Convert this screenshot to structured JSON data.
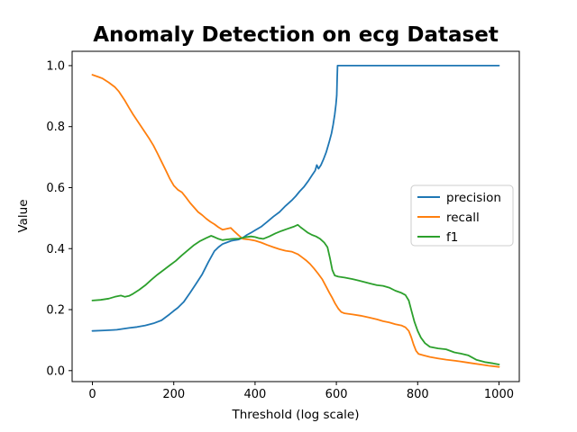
{
  "chart_data": {
    "type": "line",
    "title": "Anomaly Detection on ecg Dataset",
    "xlabel": "Threshold (log scale)",
    "ylabel": "Value",
    "grid": false,
    "legend_position": "center right",
    "background_color": "#ffffff",
    "spine_color": "#000000",
    "xlim": [
      -50,
      1050
    ],
    "ylim": [
      -0.036,
      1.047
    ],
    "xticks": [
      {
        "v": 0,
        "label": "0"
      },
      {
        "v": 200,
        "label": "200"
      },
      {
        "v": 400,
        "label": "400"
      },
      {
        "v": 600,
        "label": "600"
      },
      {
        "v": 800,
        "label": "800"
      },
      {
        "v": 1000,
        "label": "1000"
      }
    ],
    "yticks": [
      {
        "v": 0.0,
        "label": "0.0"
      },
      {
        "v": 0.2,
        "label": "0.2"
      },
      {
        "v": 0.4,
        "label": "0.4"
      },
      {
        "v": 0.6,
        "label": "0.6"
      },
      {
        "v": 0.8,
        "label": "0.8"
      },
      {
        "v": 1.0,
        "label": "1.0"
      }
    ],
    "series": [
      {
        "name": "precision",
        "color": "#1f77b4",
        "points": [
          [
            0,
            0.13
          ],
          [
            30,
            0.132
          ],
          [
            60,
            0.134
          ],
          [
            90,
            0.14
          ],
          [
            110,
            0.143
          ],
          [
            130,
            0.148
          ],
          [
            150,
            0.155
          ],
          [
            170,
            0.165
          ],
          [
            190,
            0.185
          ],
          [
            200,
            0.196
          ],
          [
            210,
            0.206
          ],
          [
            225,
            0.226
          ],
          [
            240,
            0.255
          ],
          [
            255,
            0.285
          ],
          [
            270,
            0.316
          ],
          [
            285,
            0.356
          ],
          [
            300,
            0.392
          ],
          [
            310,
            0.405
          ],
          [
            320,
            0.415
          ],
          [
            330,
            0.42
          ],
          [
            340,
            0.425
          ],
          [
            350,
            0.428
          ],
          [
            360,
            0.43
          ],
          [
            370,
            0.436
          ],
          [
            380,
            0.445
          ],
          [
            390,
            0.452
          ],
          [
            400,
            0.46
          ],
          [
            415,
            0.472
          ],
          [
            430,
            0.488
          ],
          [
            445,
            0.505
          ],
          [
            460,
            0.52
          ],
          [
            475,
            0.54
          ],
          [
            490,
            0.558
          ],
          [
            500,
            0.572
          ],
          [
            510,
            0.588
          ],
          [
            520,
            0.602
          ],
          [
            530,
            0.62
          ],
          [
            540,
            0.64
          ],
          [
            548,
            0.656
          ],
          [
            552,
            0.674
          ],
          [
            556,
            0.662
          ],
          [
            562,
            0.674
          ],
          [
            568,
            0.692
          ],
          [
            575,
            0.716
          ],
          [
            582,
            0.748
          ],
          [
            588,
            0.778
          ],
          [
            592,
            0.806
          ],
          [
            596,
            0.84
          ],
          [
            599,
            0.872
          ],
          [
            601,
            0.902
          ],
          [
            602,
            0.96
          ],
          [
            603,
            1.0
          ],
          [
            1000,
            1.0
          ]
        ]
      },
      {
        "name": "recall",
        "color": "#ff7f0e",
        "points": [
          [
            0,
            0.97
          ],
          [
            15,
            0.963
          ],
          [
            25,
            0.958
          ],
          [
            40,
            0.945
          ],
          [
            55,
            0.93
          ],
          [
            65,
            0.915
          ],
          [
            80,
            0.885
          ],
          [
            90,
            0.862
          ],
          [
            100,
            0.84
          ],
          [
            110,
            0.82
          ],
          [
            120,
            0.8
          ],
          [
            130,
            0.78
          ],
          [
            140,
            0.76
          ],
          [
            150,
            0.738
          ],
          [
            160,
            0.712
          ],
          [
            170,
            0.685
          ],
          [
            180,
            0.658
          ],
          [
            190,
            0.63
          ],
          [
            200,
            0.607
          ],
          [
            210,
            0.593
          ],
          [
            220,
            0.585
          ],
          [
            230,
            0.568
          ],
          [
            240,
            0.55
          ],
          [
            250,
            0.535
          ],
          [
            260,
            0.52
          ],
          [
            270,
            0.51
          ],
          [
            280,
            0.498
          ],
          [
            290,
            0.488
          ],
          [
            300,
            0.48
          ],
          [
            310,
            0.47
          ],
          [
            320,
            0.462
          ],
          [
            330,
            0.465
          ],
          [
            340,
            0.468
          ],
          [
            350,
            0.455
          ],
          [
            360,
            0.443
          ],
          [
            370,
            0.432
          ],
          [
            385,
            0.43
          ],
          [
            400,
            0.426
          ],
          [
            415,
            0.42
          ],
          [
            430,
            0.412
          ],
          [
            445,
            0.405
          ],
          [
            460,
            0.398
          ],
          [
            475,
            0.393
          ],
          [
            490,
            0.39
          ],
          [
            505,
            0.382
          ],
          [
            515,
            0.372
          ],
          [
            525,
            0.362
          ],
          [
            535,
            0.35
          ],
          [
            545,
            0.335
          ],
          [
            555,
            0.318
          ],
          [
            565,
            0.3
          ],
          [
            575,
            0.275
          ],
          [
            583,
            0.255
          ],
          [
            590,
            0.238
          ],
          [
            597,
            0.22
          ],
          [
            605,
            0.203
          ],
          [
            612,
            0.192
          ],
          [
            620,
            0.188
          ],
          [
            640,
            0.184
          ],
          [
            660,
            0.18
          ],
          [
            680,
            0.174
          ],
          [
            700,
            0.168
          ],
          [
            715,
            0.162
          ],
          [
            730,
            0.158
          ],
          [
            745,
            0.152
          ],
          [
            760,
            0.148
          ],
          [
            770,
            0.142
          ],
          [
            778,
            0.13
          ],
          [
            784,
            0.11
          ],
          [
            790,
            0.085
          ],
          [
            796,
            0.065
          ],
          [
            802,
            0.055
          ],
          [
            815,
            0.05
          ],
          [
            830,
            0.045
          ],
          [
            850,
            0.04
          ],
          [
            870,
            0.036
          ],
          [
            895,
            0.032
          ],
          [
            915,
            0.028
          ],
          [
            935,
            0.024
          ],
          [
            955,
            0.02
          ],
          [
            975,
            0.016
          ],
          [
            1000,
            0.012
          ]
        ]
      },
      {
        "name": "f1",
        "color": "#2ca02c",
        "points": [
          [
            0,
            0.23
          ],
          [
            20,
            0.232
          ],
          [
            40,
            0.236
          ],
          [
            55,
            0.242
          ],
          [
            70,
            0.246
          ],
          [
            80,
            0.242
          ],
          [
            90,
            0.245
          ],
          [
            100,
            0.252
          ],
          [
            115,
            0.265
          ],
          [
            130,
            0.28
          ],
          [
            145,
            0.298
          ],
          [
            160,
            0.315
          ],
          [
            175,
            0.33
          ],
          [
            190,
            0.345
          ],
          [
            205,
            0.36
          ],
          [
            220,
            0.378
          ],
          [
            235,
            0.395
          ],
          [
            250,
            0.412
          ],
          [
            265,
            0.425
          ],
          [
            280,
            0.435
          ],
          [
            292,
            0.442
          ],
          [
            300,
            0.438
          ],
          [
            310,
            0.432
          ],
          [
            320,
            0.428
          ],
          [
            330,
            0.43
          ],
          [
            345,
            0.432
          ],
          [
            360,
            0.433
          ],
          [
            375,
            0.437
          ],
          [
            390,
            0.44
          ],
          [
            400,
            0.438
          ],
          [
            410,
            0.434
          ],
          [
            420,
            0.432
          ],
          [
            435,
            0.44
          ],
          [
            450,
            0.45
          ],
          [
            465,
            0.458
          ],
          [
            480,
            0.465
          ],
          [
            495,
            0.472
          ],
          [
            505,
            0.478
          ],
          [
            512,
            0.47
          ],
          [
            520,
            0.462
          ],
          [
            530,
            0.452
          ],
          [
            540,
            0.445
          ],
          [
            550,
            0.44
          ],
          [
            560,
            0.432
          ],
          [
            570,
            0.42
          ],
          [
            578,
            0.405
          ],
          [
            584,
            0.37
          ],
          [
            590,
            0.33
          ],
          [
            596,
            0.312
          ],
          [
            605,
            0.308
          ],
          [
            620,
            0.305
          ],
          [
            640,
            0.3
          ],
          [
            655,
            0.295
          ],
          [
            670,
            0.29
          ],
          [
            685,
            0.285
          ],
          [
            700,
            0.28
          ],
          [
            715,
            0.278
          ],
          [
            730,
            0.272
          ],
          [
            745,
            0.262
          ],
          [
            760,
            0.255
          ],
          [
            770,
            0.248
          ],
          [
            778,
            0.23
          ],
          [
            785,
            0.195
          ],
          [
            792,
            0.16
          ],
          [
            800,
            0.13
          ],
          [
            808,
            0.108
          ],
          [
            818,
            0.09
          ],
          [
            830,
            0.078
          ],
          [
            850,
            0.073
          ],
          [
            870,
            0.07
          ],
          [
            890,
            0.06
          ],
          [
            905,
            0.056
          ],
          [
            925,
            0.05
          ],
          [
            945,
            0.035
          ],
          [
            965,
            0.028
          ],
          [
            985,
            0.024
          ],
          [
            1000,
            0.02
          ]
        ]
      }
    ]
  }
}
